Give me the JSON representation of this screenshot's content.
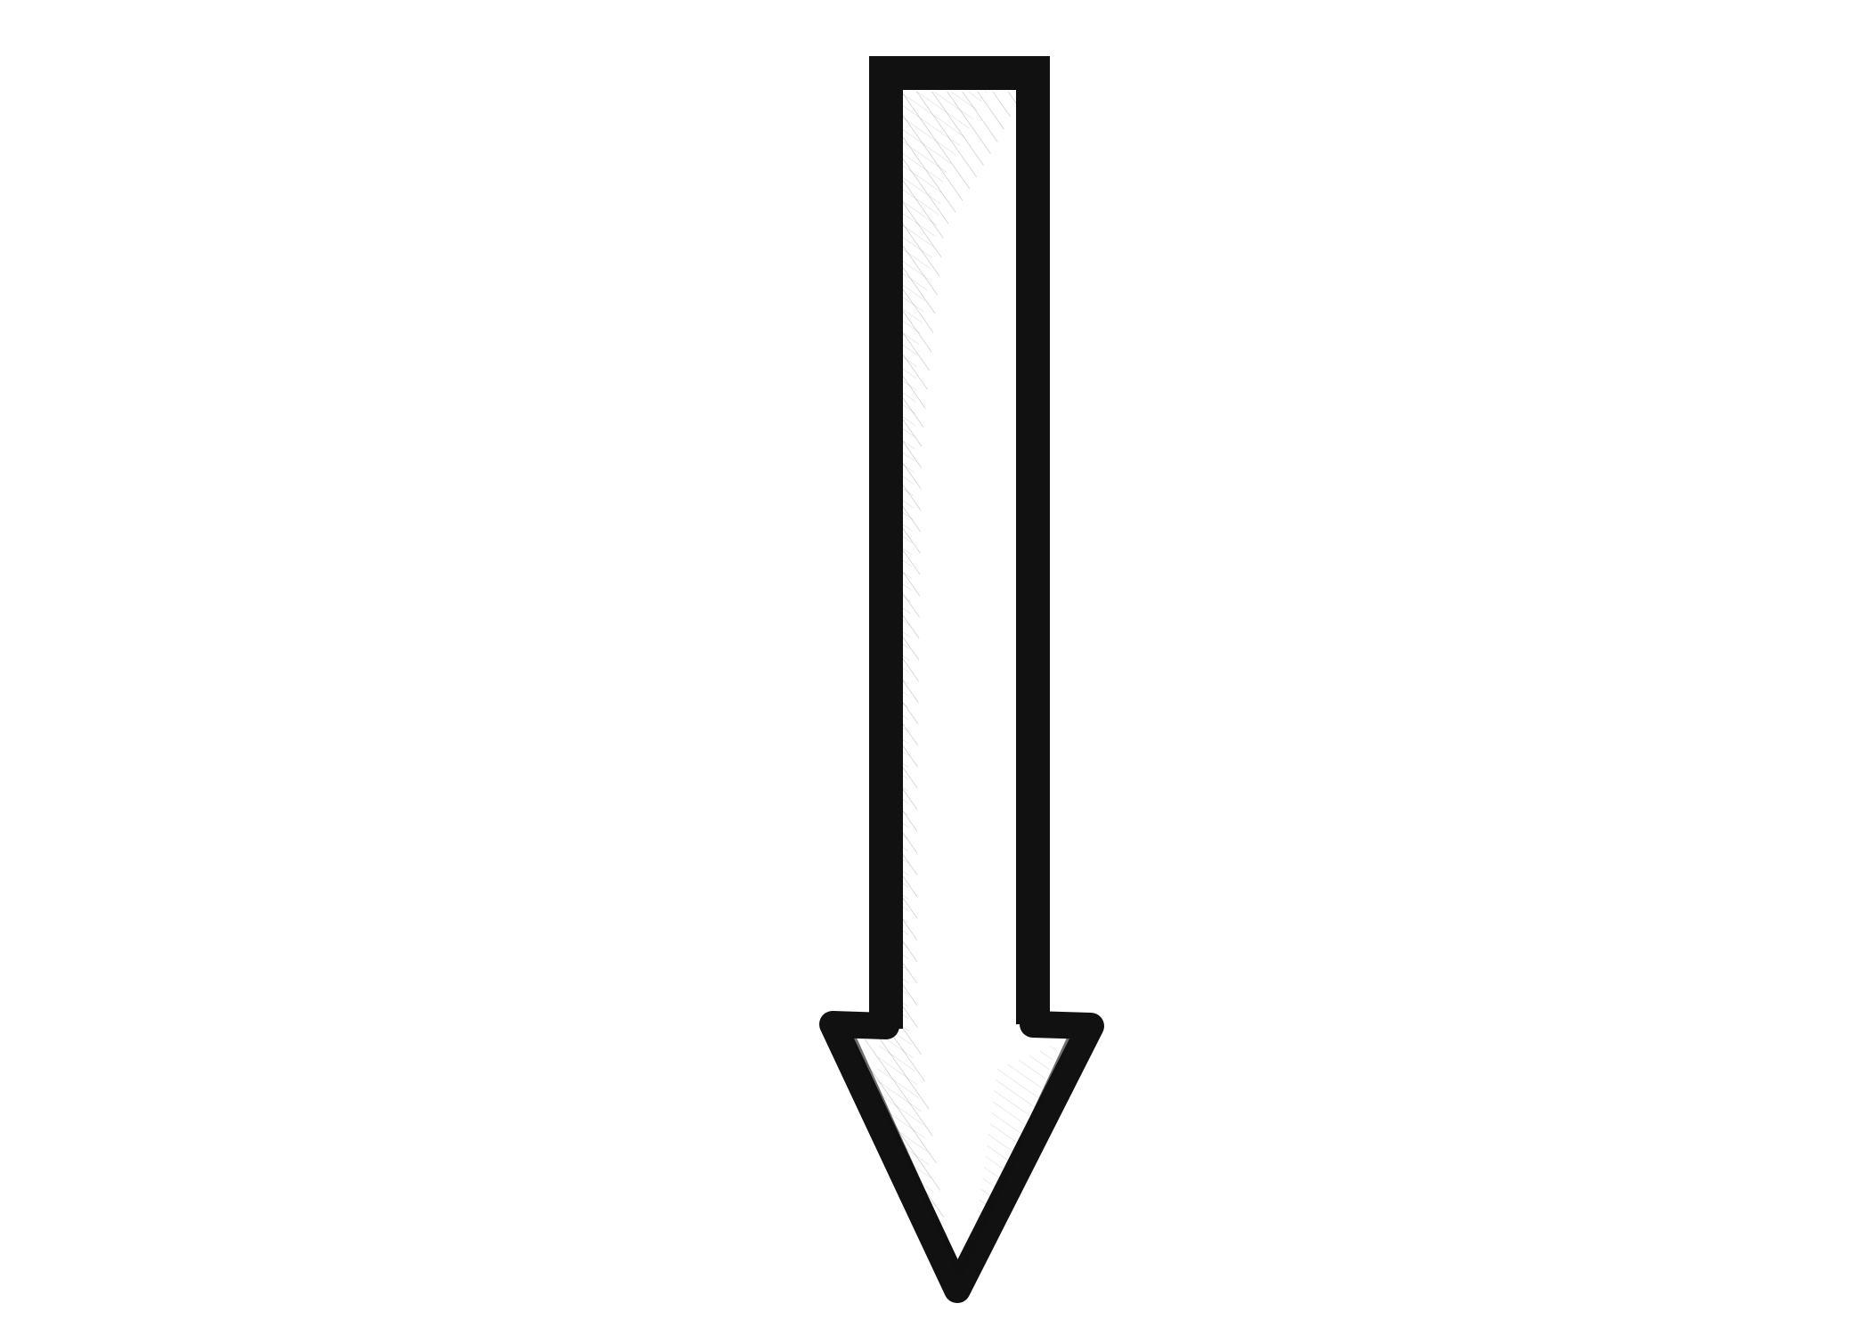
{
  "illustration": {
    "subject": "down-arrow-icon",
    "direction": "down",
    "colors": {
      "background": "#ffffff",
      "outline": "#111111",
      "fill": "#ffffff",
      "shading": "#8a8a8a"
    }
  }
}
